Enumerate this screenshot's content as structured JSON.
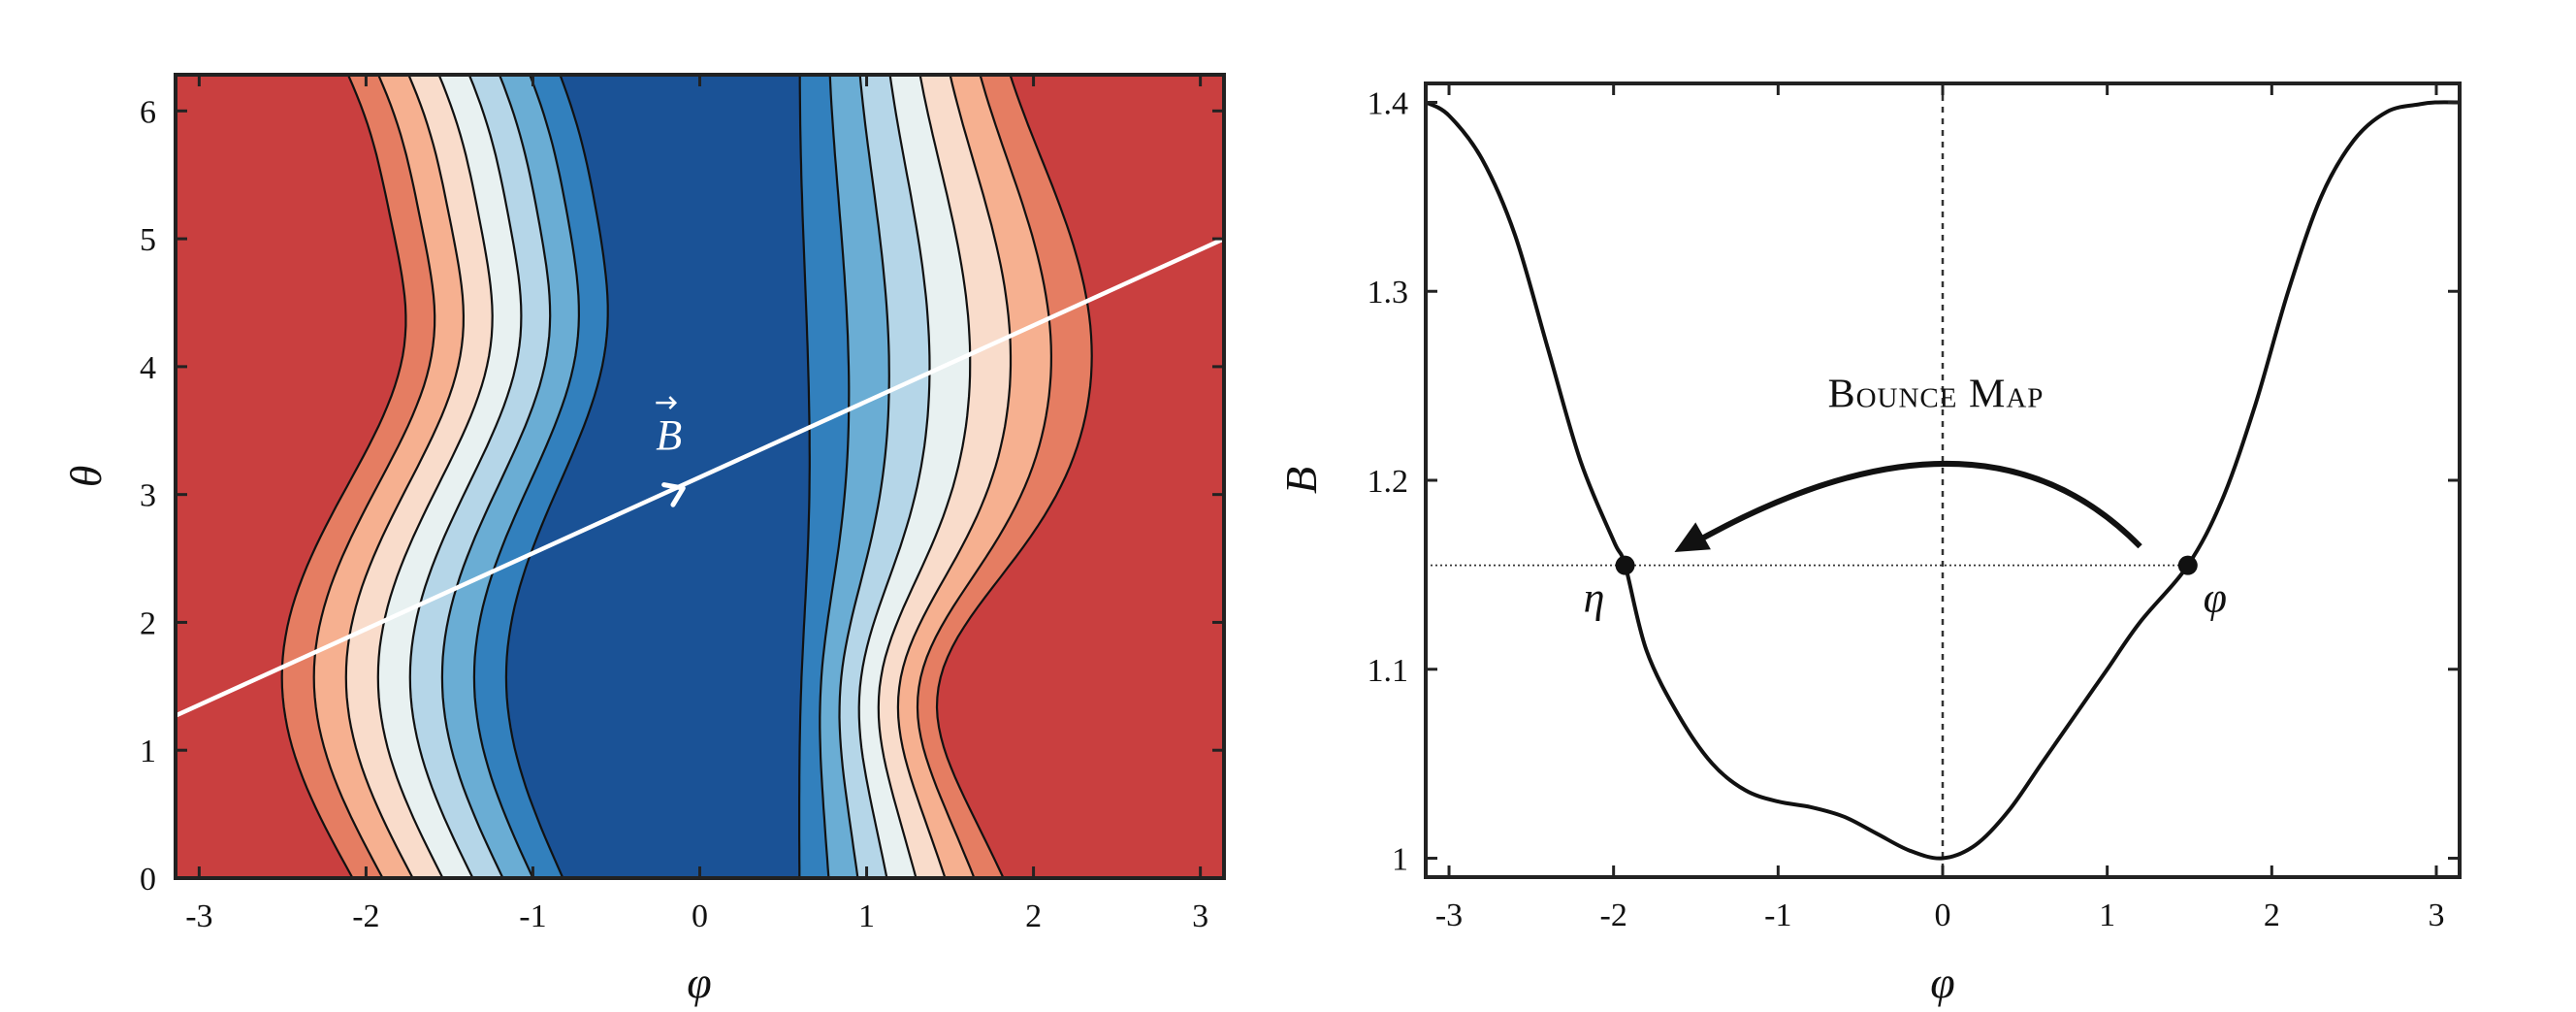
{
  "chart_data": [
    {
      "type": "heatmap",
      "subtype": "filled-contour",
      "xlabel": "φ",
      "ylabel": "θ",
      "xlim": [
        -3.14159,
        3.14159
      ],
      "ylim": [
        0,
        6.28318
      ],
      "xticks": [
        "-3",
        "-2",
        "-1",
        "0",
        "1",
        "2",
        "3"
      ],
      "yticks": [
        "0",
        "1",
        "2",
        "3",
        "4",
        "5",
        "6"
      ],
      "colormap": [
        "#1a5296",
        "#3280bd",
        "#6aadd4",
        "#b5d6e8",
        "#e8f1f1",
        "#f9dccb",
        "#f6b090",
        "#e57d62",
        "#c93f3f"
      ],
      "contour_line_color": "#111111",
      "field_line": {
        "label": "B⃗",
        "color": "#ffffff",
        "slope": 0.6,
        "arrow_at": [
          -0.1,
          3.05
        ],
        "points": [
          [
            -3.14159,
            1.27
          ],
          [
            3.14159,
            5.0
          ]
        ]
      }
    },
    {
      "type": "line",
      "xlabel": "φ",
      "ylabel": "B",
      "xlim": [
        -3.14159,
        3.14159
      ],
      "ylim": [
        0.99,
        1.41
      ],
      "xticks": [
        "-3",
        "-2",
        "-1",
        "0",
        "1",
        "2",
        "3"
      ],
      "yticks": [
        "1",
        "1.1",
        "1.2",
        "1.3",
        "1.4"
      ],
      "series": [
        {
          "x": [
            -3.14,
            -3.0,
            -2.8,
            -2.6,
            -2.4,
            -2.2,
            -2.0,
            -1.93,
            -1.8,
            -1.6,
            -1.4,
            -1.2,
            -1.0,
            -0.8,
            -0.6,
            -0.4,
            -0.2,
            0.0,
            0.2,
            0.4,
            0.6,
            0.8,
            1.0,
            1.2,
            1.49,
            1.7,
            1.9,
            2.1,
            2.3,
            2.5,
            2.7,
            2.9,
            3.0,
            3.14
          ],
          "y": [
            1.4,
            1.393,
            1.37,
            1.33,
            1.27,
            1.21,
            1.168,
            1.155,
            1.11,
            1.075,
            1.05,
            1.036,
            1.03,
            1.027,
            1.022,
            1.013,
            1.004,
            1.0,
            1.007,
            1.025,
            1.05,
            1.075,
            1.1,
            1.125,
            1.155,
            1.19,
            1.24,
            1.3,
            1.35,
            1.38,
            1.395,
            1.399,
            1.4,
            1.4
          ]
        }
      ],
      "vertical_dotted_line_x": 0,
      "horizontal_dotted_level": 1.155,
      "points": [
        {
          "label": "η",
          "x": -1.93,
          "y": 1.155
        },
        {
          "label": "φ",
          "x": 1.49,
          "y": 1.155
        }
      ],
      "annotation": {
        "text": "Bounce Map",
        "arrow": {
          "from": [
            1.2,
            1.165
          ],
          "peak": [
            0.0,
            1.208
          ],
          "to": [
            -1.63,
            1.162
          ]
        }
      }
    }
  ]
}
